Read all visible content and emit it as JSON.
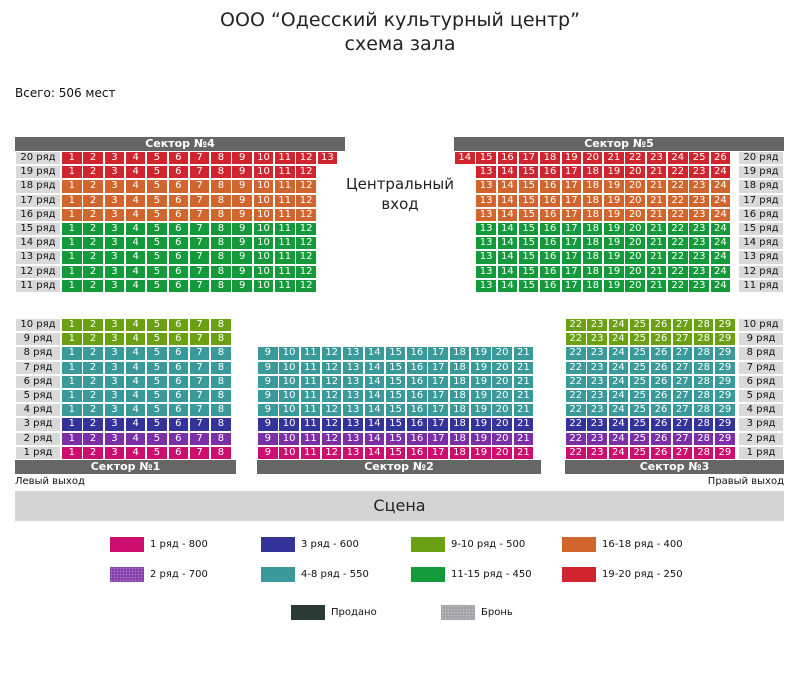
{
  "header": {
    "title_line1": "ООО “Одесский культурный центр”",
    "title_line2": "схема зала"
  },
  "total_seats": "Всего: 506 мест",
  "entrance_line1": "Центральный",
  "entrance_line2": "вход",
  "left_exit": "Левый выход",
  "right_exit": "Правый выход",
  "stage": "Сцена",
  "colors": {
    "row1": "#cc0e6e",
    "row2": "#7a2fa6",
    "row3": "#333399",
    "rows4_8": "#3a9a9a",
    "rows9_10": "#6aa012",
    "rows11_15": "#149a3a",
    "rows16_18": "#d0652e",
    "rows19_20": "#d0252e",
    "sold": "#2a3a35",
    "reserved": "#9a9aa0"
  },
  "sectors": [
    {
      "id": "s4",
      "label": "Сектор №4"
    },
    {
      "id": "s5",
      "label": "Сектор №5"
    },
    {
      "id": "s1",
      "label": "Сектор №1"
    },
    {
      "id": "s2",
      "label": "Сектор №2"
    },
    {
      "id": "s3",
      "label": "Сектор №3"
    }
  ],
  "row_labels": {
    "r20": "20 ряд",
    "r19": "19 ряд",
    "r18": "18 ряд",
    "r17": "17 ряд",
    "r16": "16 ряд",
    "r15": "15 ряд",
    "r14": "14 ряд",
    "r13": "13 ряд",
    "r12": "12 ряд",
    "r11": "11 ряд",
    "r10": "10 ряд",
    "r9": "9 ряд",
    "r8": "8 ряд",
    "r7": "7 ряд",
    "r6": "6 ряд",
    "r5": "5 ряд",
    "r4": "4 ряд",
    "r3": "3 ряд",
    "r2": "2 ряд",
    "r1": "1 ряд"
  },
  "legend": [
    {
      "label": "1 ряд - 800",
      "color": "#cc0e6e",
      "dotted": false
    },
    {
      "label": "3 ряд - 600",
      "color": "#333399",
      "dotted": false
    },
    {
      "label": "9-10 ряд - 500",
      "color": "#6aa012",
      "dotted": false
    },
    {
      "label": "16-18 ряд - 400",
      "color": "#d0652e",
      "dotted": false
    },
    {
      "label": "2 ряд - 700",
      "color": "#7a2fa6",
      "dotted": true
    },
    {
      "label": "4-8 ряд - 550",
      "color": "#3a9a9a",
      "dotted": false
    },
    {
      "label": "11-15 ряд - 450",
      "color": "#149a3a",
      "dotted": false
    },
    {
      "label": "19-20 ряд - 250",
      "color": "#d0252e",
      "dotted": false
    },
    {
      "label": "Продано",
      "color": "#2a3a35",
      "dotted": false
    },
    {
      "label": "Бронь",
      "color": "#9a9aa0",
      "dotted": true
    }
  ]
}
